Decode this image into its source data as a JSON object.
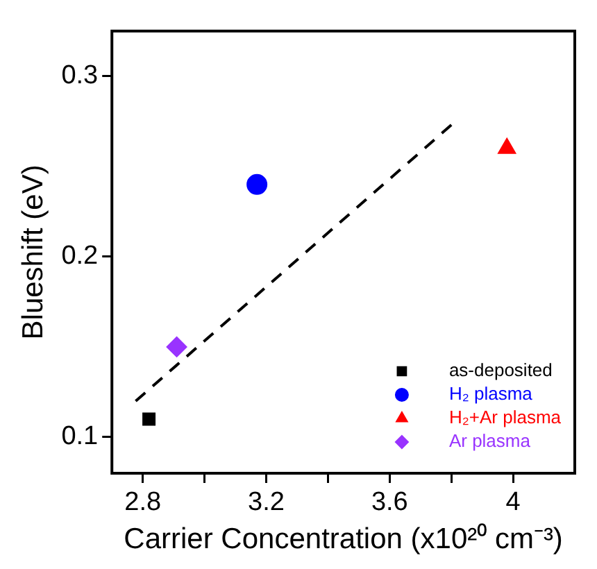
{
  "chart_data": {
    "type": "scatter",
    "xlabel": "Carrier Concentration (x10²⁰ cm⁻³)",
    "ylabel": "Blueshift (eV)",
    "xlim": [
      2.7,
      4.2
    ],
    "xticks": [
      2.8,
      {
        "value": 3.0,
        "label": null
      },
      3.2,
      {
        "value": 3.4,
        "label": null
      },
      3.6,
      {
        "value": 3.8,
        "label": null
      },
      4
    ],
    "ylim": [
      0.08,
      0.325
    ],
    "yticks": [
      0.1,
      0.2,
      0.3
    ],
    "grid": false,
    "legend": "bottom right",
    "series": [
      {
        "name": "as-deposited",
        "color": "#000000",
        "marker": "square",
        "x": [
          2.82
        ],
        "values": [
          0.11
        ]
      },
      {
        "name": "H₂ plasma",
        "color": "#0000ff",
        "marker": "circle",
        "x": [
          3.17
        ],
        "values": [
          0.24
        ]
      },
      {
        "name": "H₂+Ar plasma",
        "color": "#ff0000",
        "marker": "triangle",
        "x": [
          3.98
        ],
        "values": [
          0.26
        ]
      },
      {
        "name": "Ar plasma",
        "color": "#9933ff",
        "marker": "diamond",
        "x": [
          2.91
        ],
        "values": [
          0.15
        ]
      },
      {
        "type": "line",
        "color": "#000000",
        "marker": "none",
        "line_style": "dashed",
        "x": [
          2.777,
          3.8
        ],
        "values": [
          0.12,
          0.273
        ]
      }
    ]
  }
}
